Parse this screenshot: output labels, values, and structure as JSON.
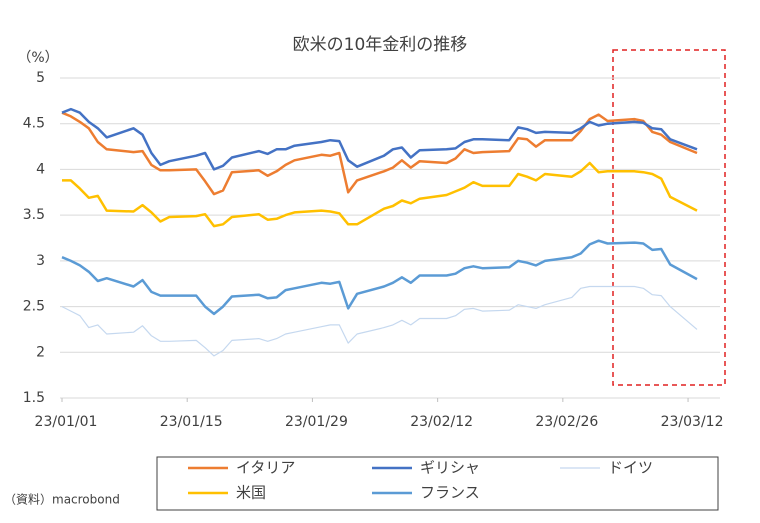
{
  "chart_data": {
    "type": "line",
    "title": "欧米の10年金利の推移",
    "y_label": "（%）",
    "source": "（資料）macrobond",
    "x": [
      0,
      1,
      2,
      3,
      4,
      5,
      8,
      9,
      10,
      11,
      12,
      15,
      16,
      17,
      18,
      19,
      22,
      23,
      24,
      25,
      26,
      29,
      30,
      31,
      32,
      33,
      36,
      37,
      38,
      39,
      40,
      43,
      44,
      45,
      46,
      47,
      50,
      51,
      52,
      53,
      54,
      57,
      58,
      59,
      60,
      61,
      64,
      65,
      66,
      67,
      68,
      71
    ],
    "xlim": [
      0,
      71
    ],
    "xticks": [
      {
        "value": 0,
        "label": "23/01/01"
      },
      {
        "value": 14,
        "label": "23/01/15"
      },
      {
        "value": 28,
        "label": "23/01/29"
      },
      {
        "value": 42,
        "label": "23/02/12"
      },
      {
        "value": 56,
        "label": "23/02/26"
      },
      {
        "value": 70,
        "label": "23/03/12"
      }
    ],
    "ylim": [
      1.5,
      5
    ],
    "yticks": [
      1.5,
      2,
      2.5,
      3,
      3.5,
      4,
      4.5,
      5
    ],
    "grid": true,
    "legend": "bottom",
    "series": [
      {
        "name": "イタリア",
        "color": "#ed7d31",
        "values": [
          4.62,
          4.58,
          4.52,
          4.45,
          4.3,
          4.22,
          4.19,
          4.2,
          4.05,
          3.99,
          3.99,
          4.0,
          3.87,
          3.73,
          3.77,
          3.97,
          3.99,
          3.93,
          3.98,
          4.05,
          4.1,
          4.16,
          4.15,
          4.18,
          3.75,
          3.88,
          3.98,
          4.02,
          4.1,
          4.02,
          4.09,
          4.07,
          4.12,
          4.22,
          4.18,
          4.19,
          4.2,
          4.34,
          4.33,
          4.25,
          4.32,
          4.32,
          4.42,
          4.55,
          4.6,
          4.53,
          4.55,
          4.53,
          4.41,
          4.38,
          4.3,
          4.18
        ]
      },
      {
        "name": "ギリシャ",
        "color": "#4472c4",
        "values": [
          4.62,
          4.66,
          4.62,
          4.52,
          4.45,
          4.35,
          4.45,
          4.38,
          4.18,
          4.05,
          4.09,
          4.15,
          4.18,
          4.0,
          4.04,
          4.13,
          4.2,
          4.17,
          4.22,
          4.22,
          4.26,
          4.3,
          4.32,
          4.31,
          4.1,
          4.03,
          4.15,
          4.22,
          4.24,
          4.13,
          4.21,
          4.22,
          4.23,
          4.3,
          4.33,
          4.33,
          4.32,
          4.46,
          4.44,
          4.4,
          4.41,
          4.4,
          4.45,
          4.52,
          4.48,
          4.5,
          4.52,
          4.51,
          4.45,
          4.44,
          4.33,
          4.22
        ]
      },
      {
        "name": "ドイツ",
        "color": "#c5d8ef",
        "values": [
          2.5,
          2.45,
          2.4,
          2.27,
          2.3,
          2.2,
          2.22,
          2.29,
          2.18,
          2.12,
          2.12,
          2.13,
          2.05,
          1.96,
          2.02,
          2.13,
          2.15,
          2.12,
          2.15,
          2.2,
          2.22,
          2.28,
          2.3,
          2.3,
          2.1,
          2.2,
          2.27,
          2.3,
          2.35,
          2.3,
          2.37,
          2.37,
          2.4,
          2.47,
          2.48,
          2.45,
          2.46,
          2.52,
          2.5,
          2.48,
          2.52,
          2.6,
          2.7,
          2.72,
          2.72,
          2.72,
          2.72,
          2.7,
          2.63,
          2.62,
          2.5,
          2.25
        ]
      },
      {
        "name": "米国",
        "color": "#ffc000",
        "values": [
          3.88,
          3.88,
          3.79,
          3.69,
          3.71,
          3.55,
          3.54,
          3.61,
          3.53,
          3.43,
          3.48,
          3.49,
          3.51,
          3.38,
          3.4,
          3.48,
          3.51,
          3.45,
          3.46,
          3.5,
          3.53,
          3.55,
          3.54,
          3.52,
          3.4,
          3.4,
          3.57,
          3.6,
          3.66,
          3.63,
          3.68,
          3.72,
          3.76,
          3.8,
          3.86,
          3.82,
          3.82,
          3.95,
          3.92,
          3.88,
          3.95,
          3.92,
          3.98,
          4.07,
          3.97,
          3.98,
          3.98,
          3.97,
          3.95,
          3.9,
          3.7,
          3.55
        ]
      },
      {
        "name": "フランス",
        "color": "#5b9bd5",
        "values": [
          3.04,
          3.0,
          2.95,
          2.88,
          2.78,
          2.81,
          2.72,
          2.79,
          2.66,
          2.62,
          2.62,
          2.62,
          2.5,
          2.42,
          2.5,
          2.61,
          2.63,
          2.59,
          2.6,
          2.68,
          2.7,
          2.76,
          2.75,
          2.77,
          2.48,
          2.64,
          2.72,
          2.76,
          2.82,
          2.76,
          2.84,
          2.84,
          2.86,
          2.92,
          2.94,
          2.92,
          2.93,
          3.0,
          2.98,
          2.95,
          3.0,
          3.04,
          3.08,
          3.18,
          3.22,
          3.19,
          3.2,
          3.19,
          3.12,
          3.13,
          2.96,
          2.8
        ]
      }
    ]
  }
}
